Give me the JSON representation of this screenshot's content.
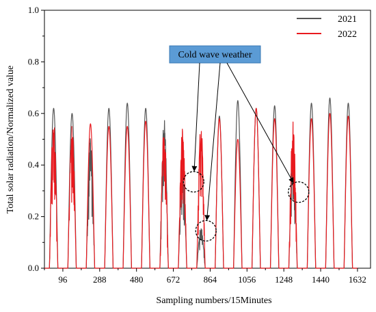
{
  "chart_data": {
    "type": "line",
    "xlabel": "Sampling numbers/15Minutes",
    "ylabel": "Total solar radiation/Normalized value",
    "xlim": [
      0,
      1700
    ],
    "ylim": [
      0,
      1.0
    ],
    "x_ticks": [
      96,
      288,
      480,
      672,
      864,
      1056,
      1248,
      1440,
      1632
    ],
    "x_tick_labels": [
      "96",
      "288",
      "480",
      "672",
      "864",
      "1056",
      "1248",
      "1440",
      "1632"
    ],
    "y_ticks": [
      0.0,
      0.2,
      0.4,
      0.6,
      0.8,
      1.0
    ],
    "y_tick_labels": [
      "0.0",
      "0.2",
      "0.4",
      "0.6",
      "0.8",
      "1.0"
    ],
    "samples_per_day": 96,
    "day_count": 17,
    "series": [
      {
        "name": "2021",
        "color": "#555555",
        "daily_peaks": [
          0.62,
          0.6,
          0.51,
          0.62,
          0.64,
          0.62,
          0.58,
          0.4,
          0.16,
          0.59,
          0.65,
          0.62,
          0.63,
          0.45,
          0.64,
          0.66,
          0.64
        ]
      },
      {
        "name": "2022",
        "color": "#e8191e",
        "daily_peaks": [
          0.6,
          0.56,
          0.56,
          0.55,
          0.55,
          0.57,
          0.55,
          0.55,
          0.56,
          0.58,
          0.5,
          0.62,
          0.58,
          0.58,
          0.58,
          0.6,
          0.59
        ]
      }
    ],
    "legend": {
      "placement": "top-right",
      "entries": [
        {
          "label": "2021",
          "color": "#555555"
        },
        {
          "label": "2022",
          "color": "#e8191e"
        }
      ]
    },
    "annotations": [
      {
        "text": "Cold wave weather",
        "box_color": "#5b9bd5",
        "circled_points": [
          {
            "x": 778,
            "y": 0.335
          },
          {
            "x": 842,
            "y": 0.145
          },
          {
            "x": 1325,
            "y": 0.295
          }
        ]
      }
    ]
  }
}
